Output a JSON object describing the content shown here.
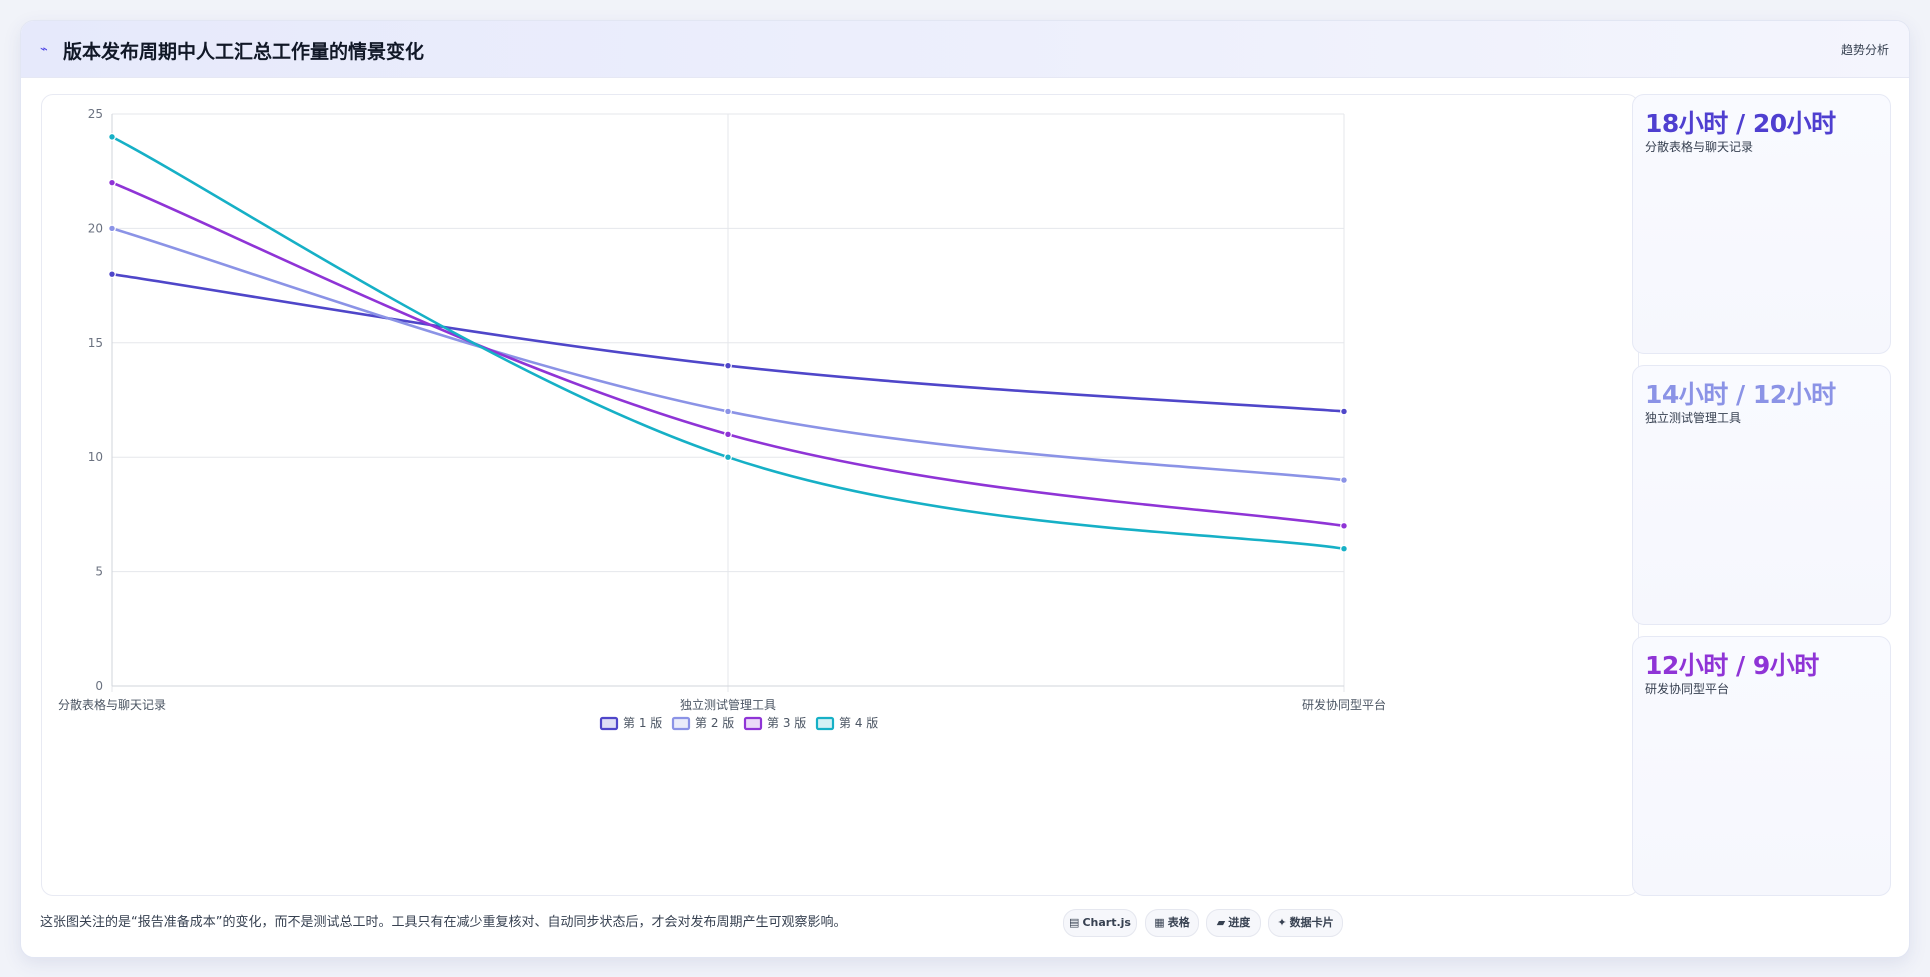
{
  "header": {
    "icon": "trend-line-icon",
    "title": "版本发布周期中人工汇总工作量的情景变化",
    "tag": "趋势分析"
  },
  "chart_data": {
    "type": "line",
    "title": "",
    "xlabel": "",
    "ylabel": "",
    "categories": [
      "分散表格与聊天记录",
      "独立测试管理工具",
      "研发协同型平台"
    ],
    "ylim": [
      0,
      25
    ],
    "yticks": [
      0,
      5,
      10,
      15,
      20,
      25
    ],
    "grid": true,
    "legend_position": "bottom",
    "series": [
      {
        "name": "第 1 版",
        "values": [
          18,
          14,
          12
        ],
        "color": "#4f46c9"
      },
      {
        "name": "第 2 版",
        "values": [
          20,
          12,
          9
        ],
        "color": "#8b93e6"
      },
      {
        "name": "第 3 版",
        "values": [
          22,
          11,
          7
        ],
        "color": "#8f34d6"
      },
      {
        "name": "第 4 版",
        "values": [
          24,
          10,
          6
        ],
        "color": "#16b0c6"
      }
    ]
  },
  "side_cards": [
    {
      "value": "18小时 / 20小时",
      "label": "分散表格与聊天记录",
      "color": "#4f3fd0"
    },
    {
      "value": "14小时 / 12小时",
      "label": "独立测试管理工具",
      "color": "#8b93e6"
    },
    {
      "value": "12小时 / 9小时",
      "label": "研发协同型平台",
      "color": "#8f34d6"
    }
  ],
  "footnote": "这张图关注的是“报告准备成本”的变化，而不是测试总工时。工具只有在减少重复核对、自动同步状态后，才会对发布周期产生可观察影响。",
  "tabs": [
    {
      "icon": "▤",
      "label": "Chart.js"
    },
    {
      "icon": "▦",
      "label": "表格"
    },
    {
      "icon": "▰",
      "label": "进度"
    },
    {
      "icon": "✦",
      "label": "数据卡片"
    }
  ],
  "colors": {
    "accent": "#4f46e5",
    "grid": "#e5e7eb",
    "axis_text": "#6b7280"
  }
}
